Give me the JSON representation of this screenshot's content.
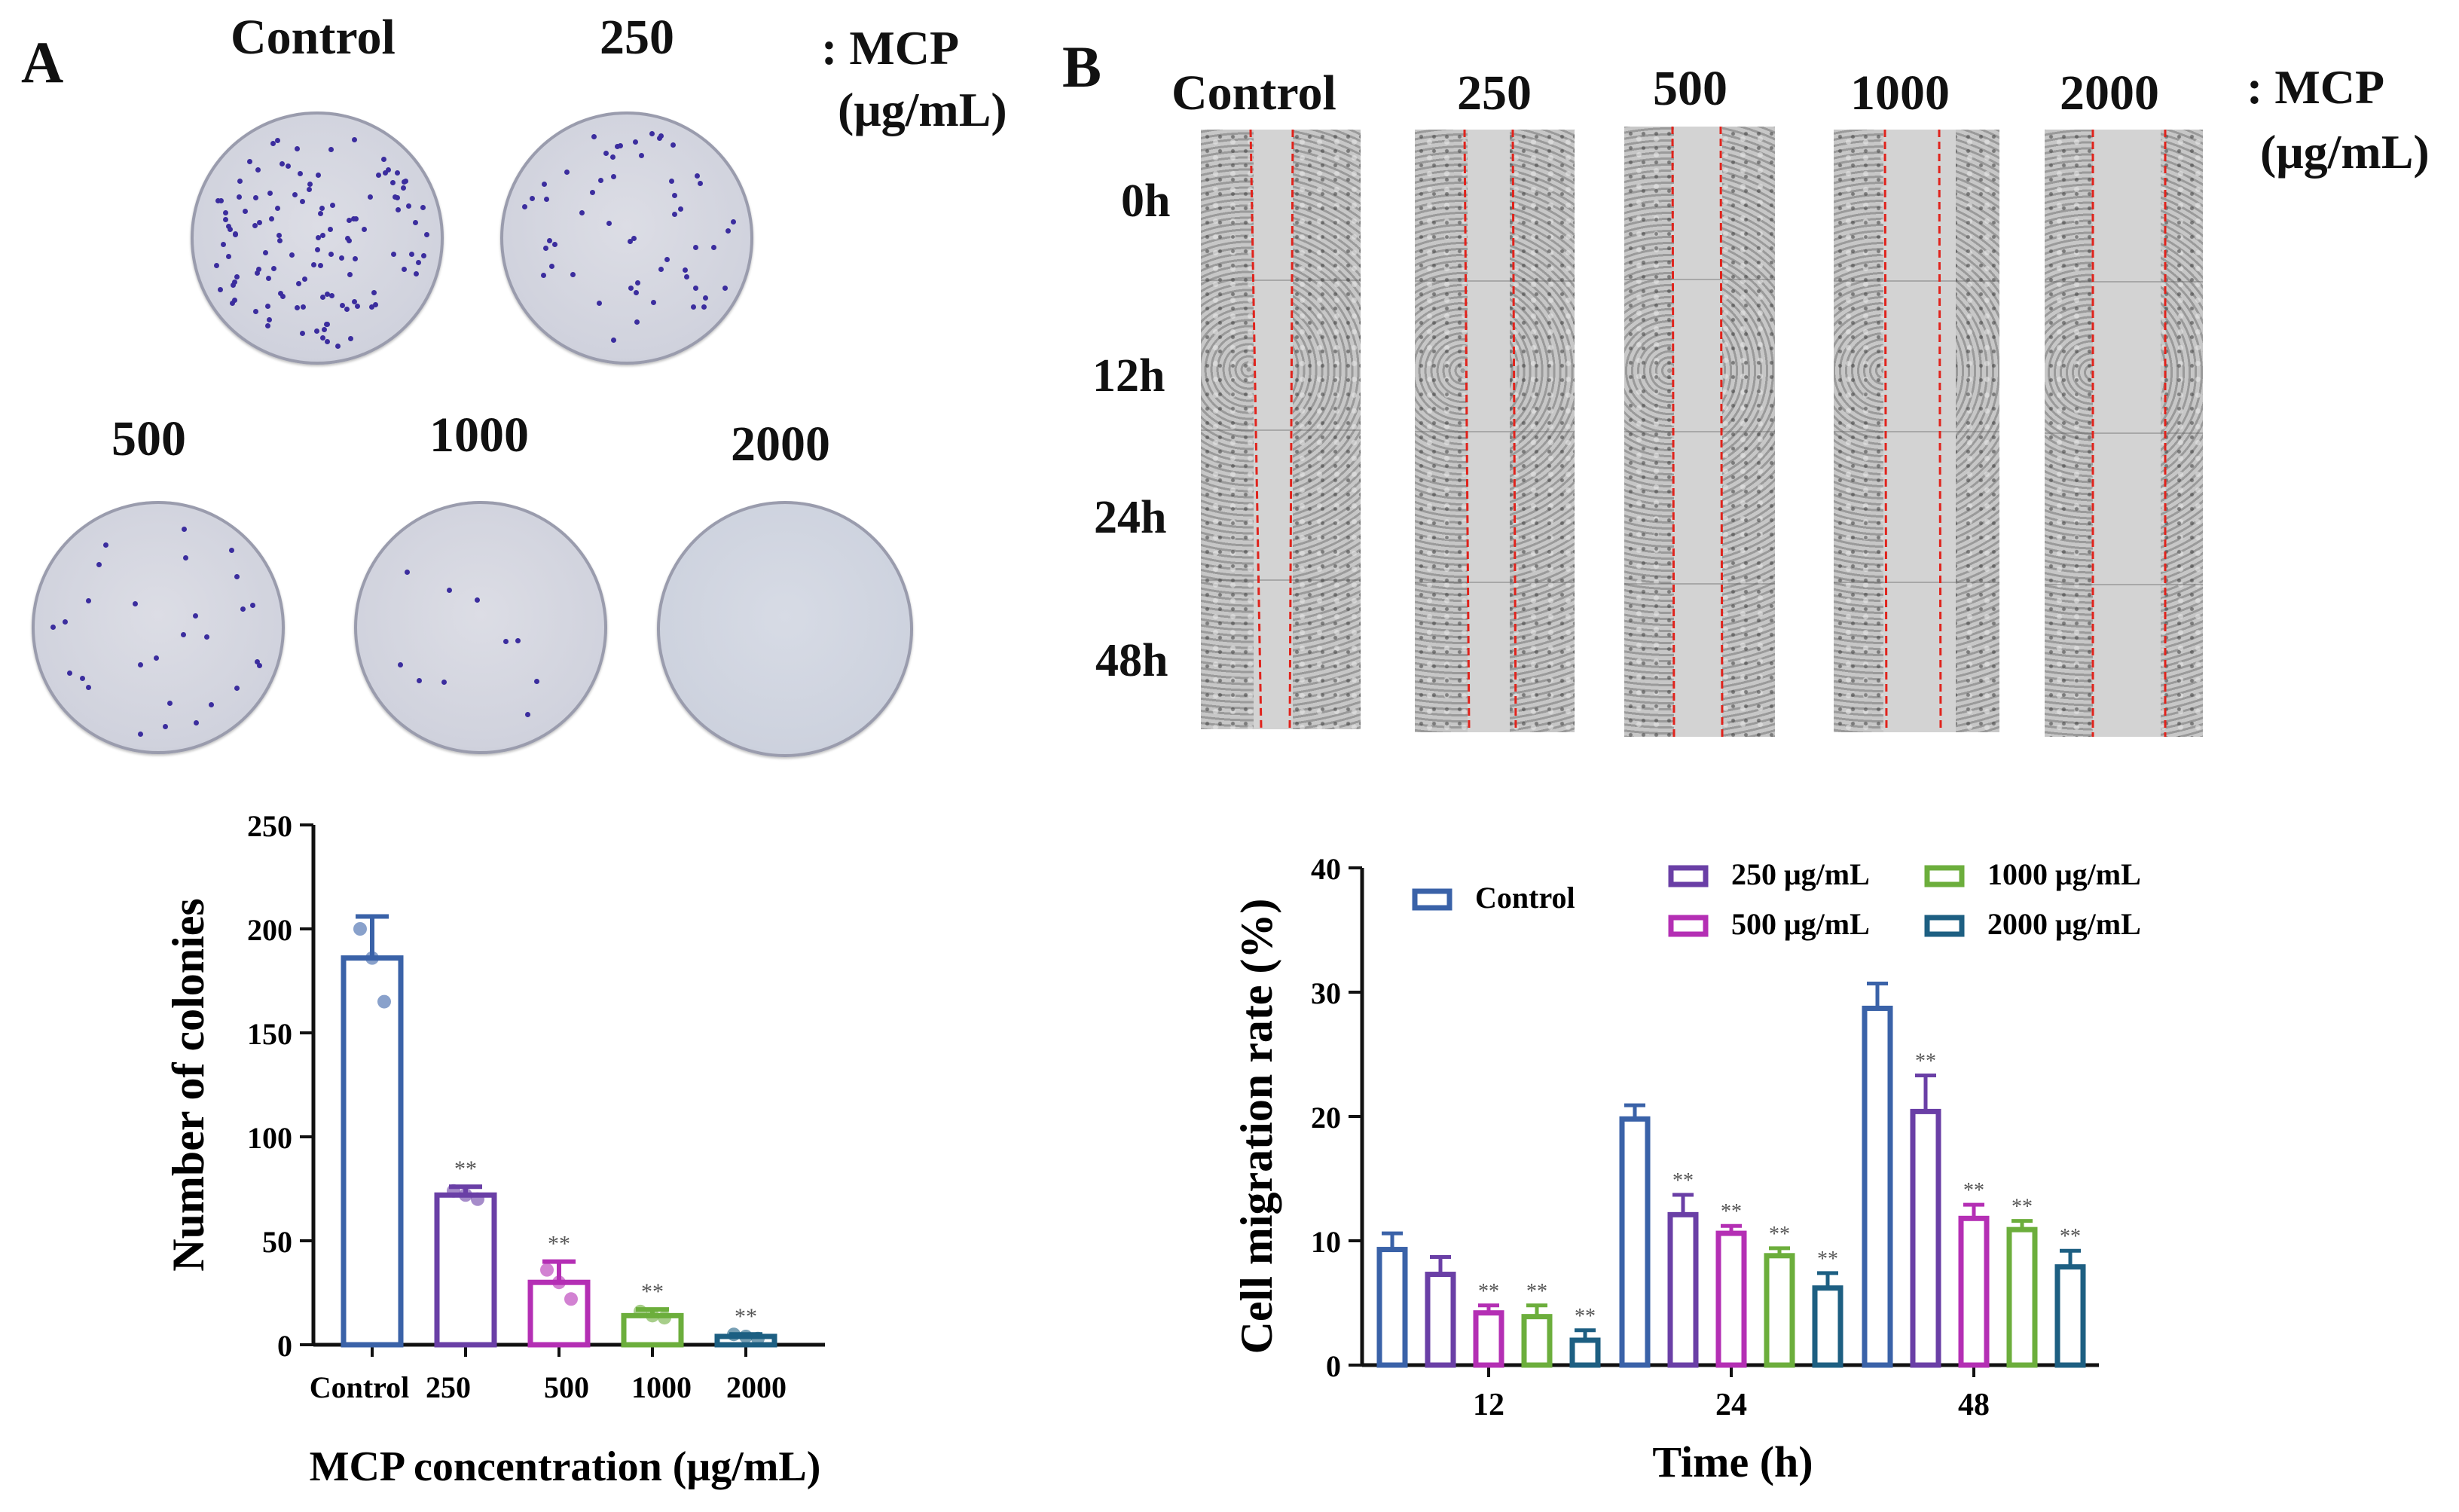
{
  "panelA": {
    "letter": "A",
    "dish_labels": [
      "Control",
      "250",
      "500",
      "1000",
      "2000"
    ],
    "unit_line1": ": MCP",
    "unit_line2": "(μg/mL)"
  },
  "panelB": {
    "letter": "B",
    "column_labels": [
      "Control",
      "250",
      "500",
      "1000",
      "2000"
    ],
    "row_labels": [
      "0h",
      "12h",
      "24h",
      "48h"
    ],
    "unit_line1": ": MCP",
    "unit_line2": "(μg/mL)"
  },
  "significance_mark": "**",
  "chart_data": [
    {
      "type": "bar",
      "title": "",
      "xlabel": "MCP concentration (μg/mL)",
      "ylabel": "Number of colonies",
      "categories": [
        "Control",
        "250",
        "500",
        "1000",
        "2000"
      ],
      "values": [
        186,
        72,
        30,
        14,
        4
      ],
      "errors": [
        20,
        4,
        10,
        3,
        1
      ],
      "points": [
        [
          200,
          186,
          165
        ],
        [
          74,
          72,
          70
        ],
        [
          36,
          30,
          22
        ],
        [
          16,
          14,
          13
        ],
        [
          5,
          4,
          3
        ]
      ],
      "significance": [
        "",
        "**",
        "**",
        "**",
        "**"
      ],
      "colors": [
        "#3a62a8",
        "#6a3fa6",
        "#b42fb4",
        "#6cae3c",
        "#1d5f82"
      ],
      "ylim": [
        0,
        250
      ],
      "yticks": [
        0,
        50,
        100,
        150,
        200,
        250
      ]
    },
    {
      "type": "bar",
      "title": "",
      "xlabel": "Time (h)",
      "ylabel": "Cell migration rate (%)",
      "categories": [
        "12",
        "24",
        "48"
      ],
      "series": [
        {
          "name": "Control",
          "color": "#3a62a8",
          "values": [
            9.3,
            19.8,
            28.7
          ],
          "errors": [
            1.3,
            1.1,
            2.0
          ],
          "significance": [
            "",
            "",
            ""
          ]
        },
        {
          "name": "250 μg/mL",
          "color": "#6a3fa6",
          "values": [
            7.3,
            12.1,
            20.4
          ],
          "errors": [
            1.4,
            1.6,
            2.9
          ],
          "significance": [
            "",
            "**",
            "**"
          ]
        },
        {
          "name": "500 μg/mL",
          "color": "#b42fb4",
          "values": [
            4.2,
            10.6,
            11.8
          ],
          "errors": [
            0.6,
            0.6,
            1.1
          ],
          "significance": [
            "**",
            "**",
            "**"
          ]
        },
        {
          "name": "1000 μg/mL",
          "color": "#6cae3c",
          "values": [
            3.9,
            8.8,
            10.9
          ],
          "errors": [
            0.9,
            0.6,
            0.7
          ],
          "significance": [
            "**",
            "**",
            "**"
          ]
        },
        {
          "name": "2000 μg/mL",
          "color": "#1d5f82",
          "values": [
            2.0,
            6.2,
            7.9
          ],
          "errors": [
            0.8,
            1.2,
            1.3
          ],
          "significance": [
            "**",
            "**",
            "**"
          ]
        }
      ],
      "ylim": [
        0,
        40
      ],
      "yticks": [
        0,
        10,
        20,
        30,
        40
      ],
      "legend": "top-left"
    }
  ]
}
